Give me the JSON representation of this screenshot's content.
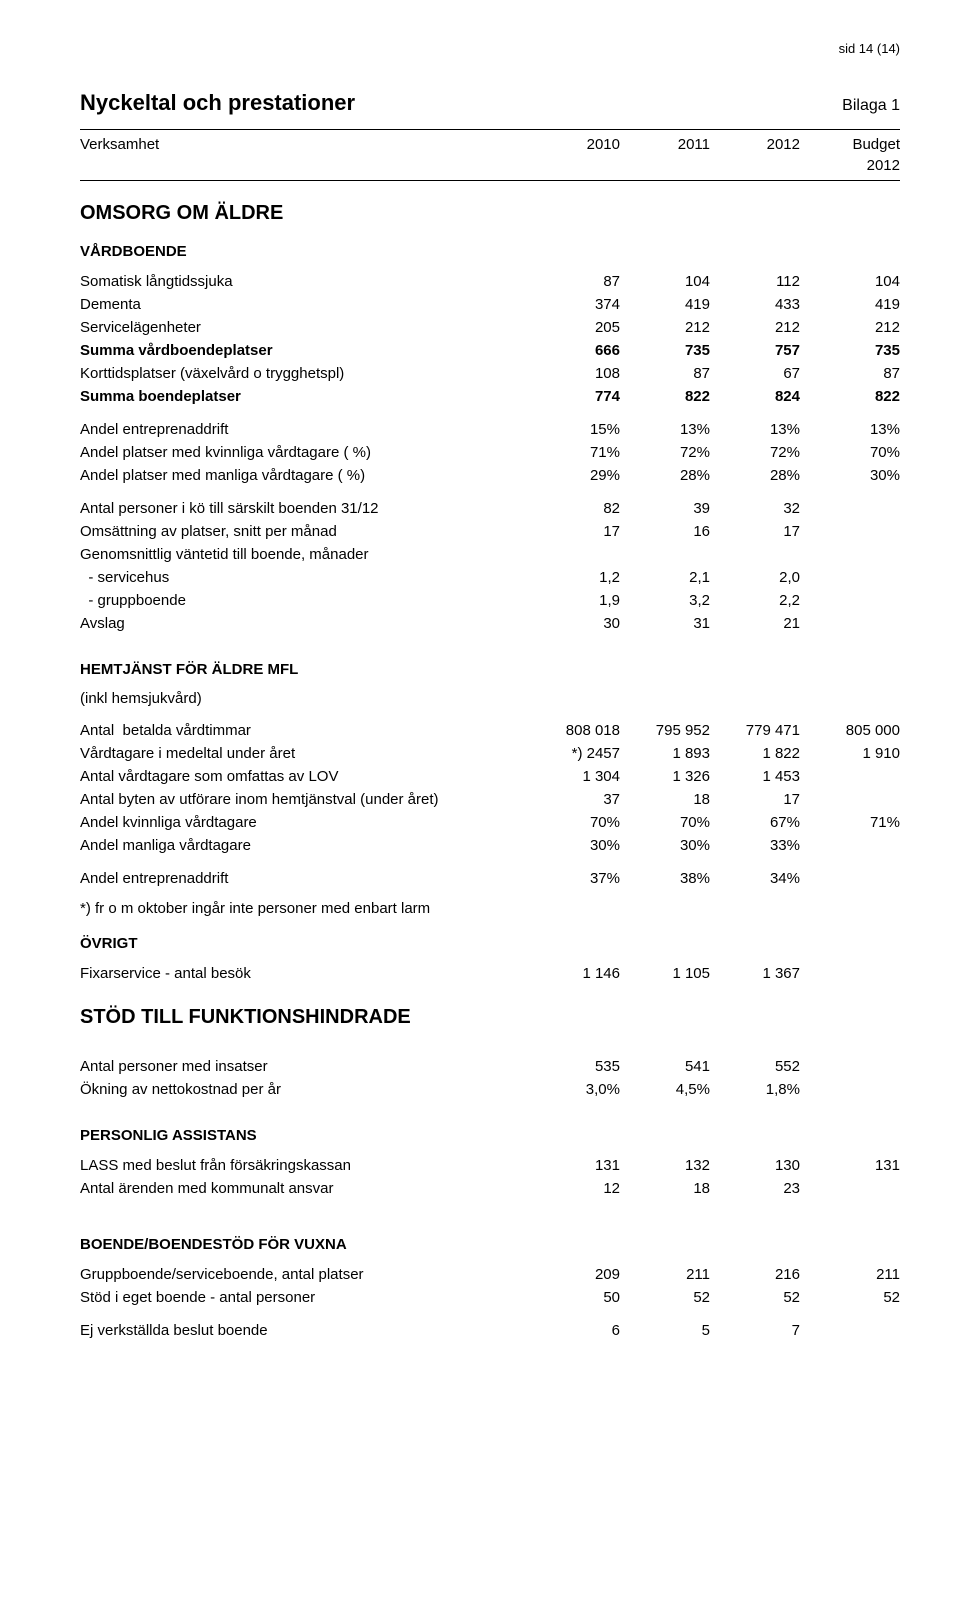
{
  "page_header": "sid 14 (14)",
  "title": "Nyckeltal och prestationer",
  "bilaga": "Bilaga 1",
  "headers": {
    "verksamhet": "Verksamhet",
    "y2010": "2010",
    "y2011": "2011",
    "y2012": "2012",
    "budget": "Budget",
    "budget_year": "2012"
  },
  "section_omsorg": "OMSORG OM ÄLDRE",
  "sub_vardboende": "VÅRDBOENDE",
  "rows_vardboende": [
    {
      "label": "Somatisk långtidssjuka",
      "c1": "87",
      "c2": "104",
      "c3": "112",
      "c4": "104"
    },
    {
      "label": "Dementa",
      "c1": "374",
      "c2": "419",
      "c3": "433",
      "c4": "419"
    },
    {
      "label": "Servicelägenheter",
      "c1": "205",
      "c2": "212",
      "c3": "212",
      "c4": "212"
    }
  ],
  "row_summa_vard": {
    "label": "Summa vårdboendeplatser",
    "c1": "666",
    "c2": "735",
    "c3": "757",
    "c4": "735"
  },
  "row_korttid": {
    "label": "Korttidsplatser (växelvård o trygghetspl)",
    "c1": "108",
    "c2": "87",
    "c3": "67",
    "c4": "87"
  },
  "row_summa_boende": {
    "label": "Summa boendeplatser",
    "c1": "774",
    "c2": "822",
    "c3": "824",
    "c4": "822"
  },
  "rows_andel_vard": [
    {
      "label": "Andel entreprenaddrift",
      "c1": "15%",
      "c2": "13%",
      "c3": "13%",
      "c4": "13%"
    },
    {
      "label": "Andel platser med kvinnliga vårdtagare ( %)",
      "c1": "71%",
      "c2": "72%",
      "c3": "72%",
      "c4": "70%"
    },
    {
      "label": "Andel platser med manliga vårdtagare ( %)",
      "c1": "29%",
      "c2": "28%",
      "c3": "28%",
      "c4": "30%"
    }
  ],
  "rows_ko": [
    {
      "label": "Antal personer i kö till särskilt boenden 31/12",
      "c1": "82",
      "c2": "39",
      "c3": "32",
      "c4": ""
    },
    {
      "label": "Omsättning av platser, snitt per månad",
      "c1": "17",
      "c2": "16",
      "c3": "17",
      "c4": ""
    },
    {
      "label": "Genomsnittlig väntetid till boende, månader",
      "c1": "",
      "c2": "",
      "c3": "",
      "c4": ""
    },
    {
      "label": "  - servicehus",
      "c1": "1,2",
      "c2": "2,1",
      "c3": "2,0",
      "c4": ""
    },
    {
      "label": "  - gruppboende",
      "c1": "1,9",
      "c2": "3,2",
      "c3": "2,2",
      "c4": ""
    },
    {
      "label": "Avslag",
      "c1": "30",
      "c2": "31",
      "c3": "21",
      "c4": ""
    }
  ],
  "sub_hemtjanst": "HEMTJÄNST FÖR ÄLDRE MFL",
  "sub_hemtjanst_note": "(inkl hemsjukvård)",
  "rows_hemtjanst": [
    {
      "label": "Antal  betalda vårdtimmar",
      "c1": "808 018",
      "c2": "795 952",
      "c3": "779 471",
      "c4": "805 000"
    },
    {
      "label": "Vårdtagare i medeltal under året",
      "c1": "*) 2457",
      "c2": "1 893",
      "c3": "1 822",
      "c4": "1 910"
    },
    {
      "label": "Antal vårdtagare som omfattas av LOV",
      "c1": "1 304",
      "c2": "1 326",
      "c3": "1 453",
      "c4": ""
    },
    {
      "label": "Antal byten av utförare inom hemtjänstval (under året)",
      "c1": "37",
      "c2": "18",
      "c3": "17",
      "c4": ""
    },
    {
      "label": "Andel kvinnliga vårdtagare",
      "c1": "70%",
      "c2": "70%",
      "c3": "67%",
      "c4": "71%"
    },
    {
      "label": "Andel manliga vårdtagare",
      "c1": "30%",
      "c2": "30%",
      "c3": "33%",
      "c4": ""
    }
  ],
  "row_andel_entr_hem": {
    "label": "Andel entreprenaddrift",
    "c1": "37%",
    "c2": "38%",
    "c3": "34%",
    "c4": ""
  },
  "footnote_hem": "*) fr o m oktober ingår inte personer med enbart larm",
  "sub_ovrigt": "ÖVRIGT",
  "row_fixar": {
    "label": "Fixarservice - antal besök",
    "c1": "1 146",
    "c2": "1 105",
    "c3": "1 367",
    "c4": ""
  },
  "section_stod": "STÖD TILL FUNKTIONSHINDRADE",
  "rows_stod_top": [
    {
      "label": "Antal personer med insatser",
      "c1": "535",
      "c2": "541",
      "c3": "552",
      "c4": ""
    },
    {
      "label": "Ökning av nettokostnad per år",
      "c1": "3,0%",
      "c2": "4,5%",
      "c3": "1,8%",
      "c4": ""
    }
  ],
  "sub_personlig": "PERSONLIG ASSISTANS",
  "rows_personlig": [
    {
      "label": "LASS med beslut från försäkringskassan",
      "c1": "131",
      "c2": "132",
      "c3": "130",
      "c4": "131"
    },
    {
      "label": "Antal ärenden med kommunalt ansvar",
      "c1": "12",
      "c2": "18",
      "c3": "23",
      "c4": ""
    }
  ],
  "sub_boende_vuxna": "BOENDE/BOENDESTÖD FÖR VUXNA",
  "rows_boende_vuxna": [
    {
      "label": "Gruppboende/serviceboende, antal platser",
      "c1": "209",
      "c2": "211",
      "c3": "216",
      "c4": "211"
    },
    {
      "label": "Stöd i eget boende - antal personer",
      "c1": "50",
      "c2": "52",
      "c3": "52",
      "c4": "52"
    }
  ],
  "row_ej_verk": {
    "label": "Ej verkställda beslut boende",
    "c1": "6",
    "c2": "5",
    "c3": "7",
    "c4": ""
  }
}
